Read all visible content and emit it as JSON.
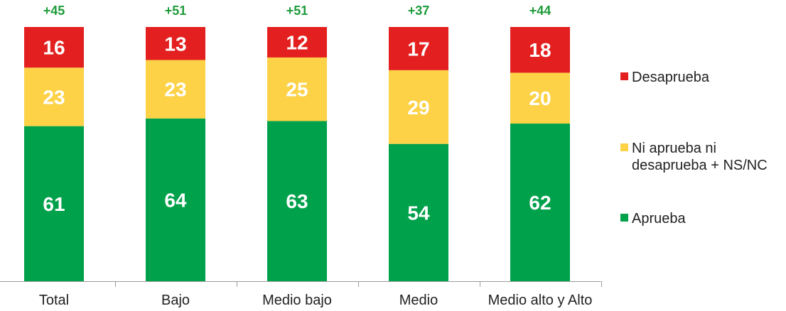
{
  "chart_data": {
    "type": "bar",
    "stacked": true,
    "categories": [
      "Total",
      "Bajo",
      "Medio bajo",
      "Medio",
      "Medio alto y Alto"
    ],
    "net_labels": [
      "+45",
      "+51",
      "+51",
      "+37",
      "+44"
    ],
    "series": [
      {
        "name": "Aprueba",
        "values": [
          61,
          64,
          63,
          54,
          62
        ],
        "color": "#00a14b"
      },
      {
        "name": "Ni aprueba ni desaprueba + NS/NC",
        "values": [
          23,
          23,
          25,
          29,
          20
        ],
        "color": "#fdd247"
      },
      {
        "name": "Desaprueba",
        "values": [
          16,
          13,
          12,
          17,
          18
        ],
        "color": "#e3201f"
      }
    ],
    "legend": {
      "placement": "right",
      "items": [
        {
          "lines": [
            "Desaprueba"
          ],
          "color": "#e3201f"
        },
        {
          "lines": [
            "Ni aprueba ni",
            "desaprueba + NS/NC"
          ],
          "color": "#fdd247"
        },
        {
          "lines": [
            "Aprueba"
          ],
          "color": "#00a14b"
        }
      ]
    },
    "net_color": "#1e9b3a"
  }
}
